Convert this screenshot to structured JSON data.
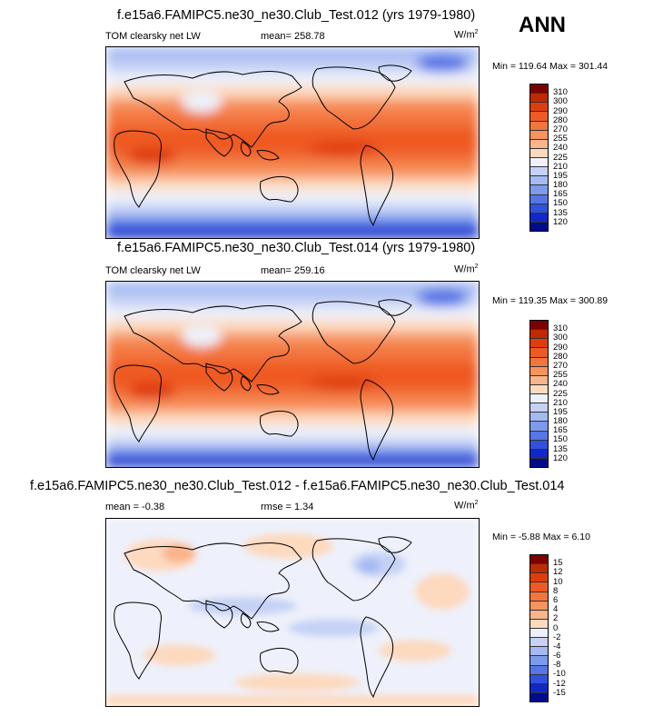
{
  "season": "ANN",
  "panels": [
    {
      "title": "f.e15a6.FAMIPC5.ne30_ne30.Club_Test.012 (yrs 1979-1980)",
      "variable": "TOM clearsky net LW",
      "mean": "mean= 258.78",
      "units": "W/m",
      "units_sup": "2",
      "minmax": "Min = 119.64 Max = 301.44"
    },
    {
      "title": "f.e15a6.FAMIPC5.ne30_ne30.Club_Test.014 (yrs 1979-1980)",
      "variable": "TOM clearsky net LW",
      "mean": "mean= 259.16",
      "units": "W/m",
      "units_sup": "2",
      "minmax": "Min = 119.35 Max = 300.89"
    },
    {
      "title": "f.e15a6.FAMIPC5.ne30_ne30.Club_Test.012 - f.e15a6.FAMIPC5.ne30_ne30.Club_Test.014",
      "mean": "mean =  -0.38",
      "rmse": "rmse =  1.34",
      "units": "W/m",
      "units_sup": "2",
      "minmax": "Min =  -5.88 Max =   6.10"
    }
  ],
  "chart_data": [
    {
      "type": "heatmap",
      "title": "f.e15a6.FAMIPC5.ne30_ne30.Club_Test.012 (yrs 1979-1980)",
      "variable": "TOM clearsky net LW",
      "mean": 258.78,
      "min": 119.64,
      "max": 301.44,
      "colorbar_levels": [
        "310",
        "300",
        "290",
        "280",
        "270",
        "255",
        "240",
        "225",
        "210",
        "195",
        "180",
        "165",
        "150",
        "135",
        "120"
      ],
      "colorbar_colors": [
        "#7d0000",
        "#c12a00",
        "#e03d0c",
        "#ee5a24",
        "#f3753c",
        "#f6935f",
        "#fab489",
        "#fdd9bd",
        "#eef1fb",
        "#c5d2f5",
        "#a4baf2",
        "#7c9bec",
        "#5676e6",
        "#2f51de",
        "#1028c6",
        "#000c8c"
      ]
    },
    {
      "type": "heatmap",
      "title": "f.e15a6.FAMIPC5.ne30_ne30.Club_Test.014 (yrs 1979-1980)",
      "variable": "TOM clearsky net LW",
      "mean": 259.16,
      "min": 119.35,
      "max": 300.89,
      "colorbar_levels": [
        "310",
        "300",
        "290",
        "280",
        "270",
        "255",
        "240",
        "225",
        "210",
        "195",
        "180",
        "165",
        "150",
        "135",
        "120"
      ],
      "colorbar_colors": [
        "#7d0000",
        "#c12a00",
        "#e03d0c",
        "#ee5a24",
        "#f3753c",
        "#f6935f",
        "#fab489",
        "#fdd9bd",
        "#eef1fb",
        "#c5d2f5",
        "#a4baf2",
        "#7c9bec",
        "#5676e6",
        "#2f51de",
        "#1028c6",
        "#000c8c"
      ]
    },
    {
      "type": "heatmap",
      "title": "f.e15a6.FAMIPC5.ne30_ne30.Club_Test.012 - f.e15a6.FAMIPC5.ne30_ne30.Club_Test.014",
      "mean": -0.38,
      "rmse": 1.34,
      "min": -5.88,
      "max": 6.1,
      "colorbar_levels": [
        "15",
        "12",
        "10",
        "8",
        "6",
        "4",
        "2",
        "0",
        "-2",
        "-4",
        "-6",
        "-8",
        "-10",
        "-12",
        "-15"
      ],
      "colorbar_colors": [
        "#7d0000",
        "#c12a00",
        "#e03d0c",
        "#ee5a24",
        "#f3753c",
        "#f6935f",
        "#fab489",
        "#fdd9bd",
        "#eef1fb",
        "#c5d2f5",
        "#a4baf2",
        "#7c9bec",
        "#5676e6",
        "#2f51de",
        "#1028c6",
        "#000c8c"
      ]
    }
  ]
}
